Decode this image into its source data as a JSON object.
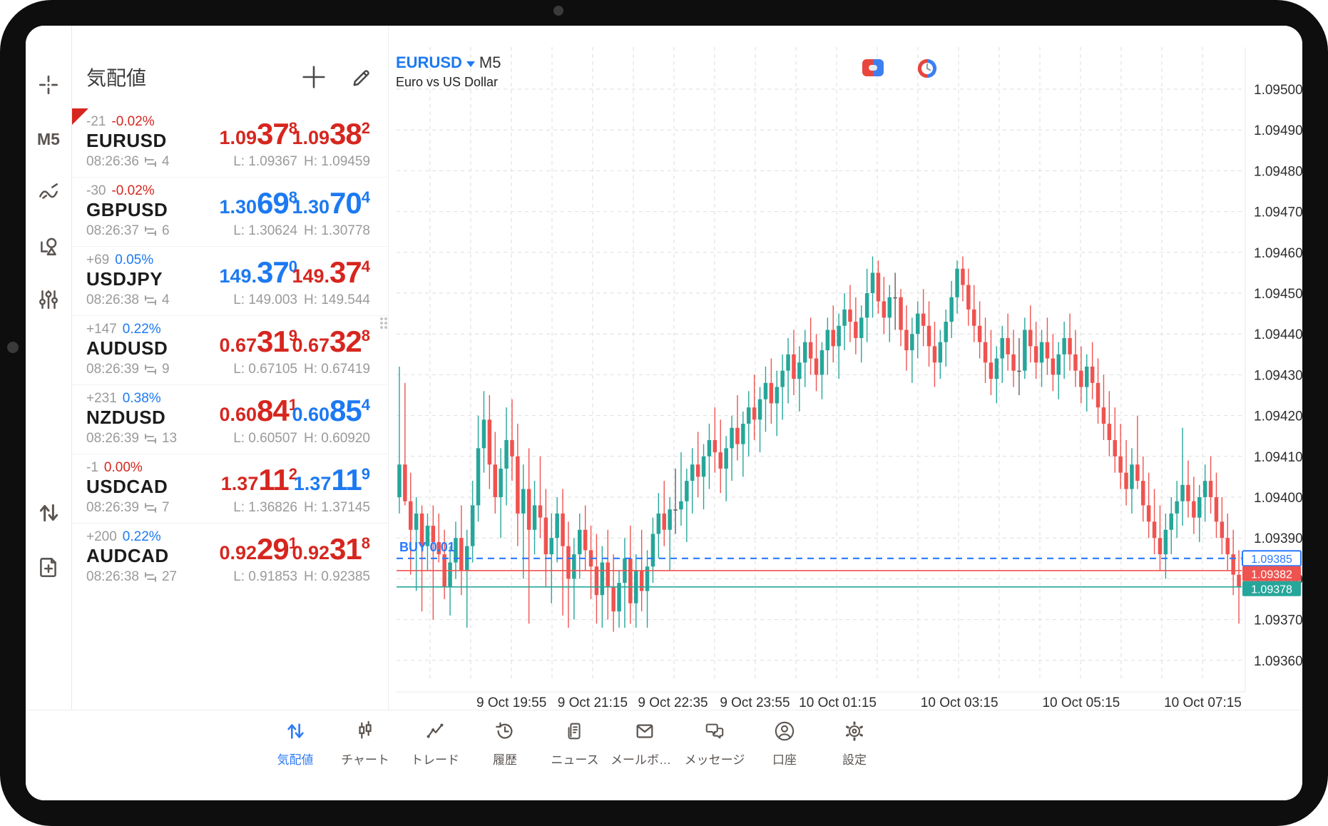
{
  "sidebar": {
    "timeframe": "M5",
    "tools": [
      "crosshair",
      "timeframe",
      "indicators",
      "objects",
      "chart-settings",
      "quick-trade",
      "new-order"
    ]
  },
  "quotes": {
    "title": "気配値",
    "items": [
      {
        "symbol": "EURUSD",
        "change": "-21",
        "change_pct": "-0.02%",
        "pct_dir": "down",
        "selected": true,
        "time": "08:26:36",
        "spread": "4",
        "bid": {
          "pre": "1.09",
          "big": "37",
          "sup": "8",
          "dir": "down"
        },
        "ask": {
          "pre": "1.09",
          "big": "38",
          "sup": "2",
          "dir": "down"
        },
        "low": "L: 1.09367",
        "high": "H: 1.09459"
      },
      {
        "symbol": "GBPUSD",
        "change": "-30",
        "change_pct": "-0.02%",
        "pct_dir": "down",
        "selected": false,
        "time": "08:26:37",
        "spread": "6",
        "bid": {
          "pre": "1.30",
          "big": "69",
          "sup": "8",
          "dir": "up"
        },
        "ask": {
          "pre": "1.30",
          "big": "70",
          "sup": "4",
          "dir": "up"
        },
        "low": "L: 1.30624",
        "high": "H: 1.30778"
      },
      {
        "symbol": "USDJPY",
        "change": "+69",
        "change_pct": "0.05%",
        "pct_dir": "up",
        "selected": false,
        "time": "08:26:38",
        "spread": "4",
        "bid": {
          "pre": "149.",
          "big": "37",
          "sup": "0",
          "dir": "up"
        },
        "ask": {
          "pre": "149.",
          "big": "37",
          "sup": "4",
          "dir": "down"
        },
        "low": "L: 149.003",
        "high": "H: 149.544"
      },
      {
        "symbol": "AUDUSD",
        "change": "+147",
        "change_pct": "0.22%",
        "pct_dir": "up",
        "selected": false,
        "time": "08:26:39",
        "spread": "9",
        "bid": {
          "pre": "0.67",
          "big": "31",
          "sup": "9",
          "dir": "down"
        },
        "ask": {
          "pre": "0.67",
          "big": "32",
          "sup": "8",
          "dir": "down"
        },
        "low": "L: 0.67105",
        "high": "H: 0.67419"
      },
      {
        "symbol": "NZDUSD",
        "change": "+231",
        "change_pct": "0.38%",
        "pct_dir": "up",
        "selected": false,
        "time": "08:26:39",
        "spread": "13",
        "bid": {
          "pre": "0.60",
          "big": "84",
          "sup": "1",
          "dir": "down"
        },
        "ask": {
          "pre": "0.60",
          "big": "85",
          "sup": "4",
          "dir": "up"
        },
        "low": "L: 0.60507",
        "high": "H: 0.60920"
      },
      {
        "symbol": "USDCAD",
        "change": "-1",
        "change_pct": "0.00%",
        "pct_dir": "down",
        "selected": false,
        "time": "08:26:39",
        "spread": "7",
        "bid": {
          "pre": "1.37",
          "big": "11",
          "sup": "2",
          "dir": "down"
        },
        "ask": {
          "pre": "1.37",
          "big": "11",
          "sup": "9",
          "dir": "up"
        },
        "low": "L: 1.36826",
        "high": "H: 1.37145"
      },
      {
        "symbol": "AUDCAD",
        "change": "+200",
        "change_pct": "0.22%",
        "pct_dir": "up",
        "selected": false,
        "time": "08:26:38",
        "spread": "27",
        "bid": {
          "pre": "0.92",
          "big": "29",
          "sup": "1",
          "dir": "down"
        },
        "ask": {
          "pre": "0.92",
          "big": "31",
          "sup": "8",
          "dir": "down"
        },
        "low": "L: 0.91853",
        "high": "H: 0.92385"
      }
    ]
  },
  "chart": {
    "symbol": "EURUSD",
    "timeframe": "M5",
    "description": "Euro vs US Dollar",
    "position_label": "BUY 0.01"
  },
  "chart_data": {
    "type": "candlestick",
    "title": "EURUSD M5",
    "price_base": 1.09,
    "unit": 1e-05,
    "ylim": [
      1.09355,
      1.0951
    ],
    "grid": true,
    "y_ticks": [
      "1.09500",
      "1.09490",
      "1.09480",
      "1.09470",
      "1.09460",
      "1.09450",
      "1.09440",
      "1.09430",
      "1.09420",
      "1.09410",
      "1.09400",
      "1.09390",
      "1.09380",
      "1.09370",
      "1.09360"
    ],
    "x_ticks": [
      {
        "label": "9 Oct 19:55",
        "pos": 0.136
      },
      {
        "label": "9 Oct 21:15",
        "pos": 0.232
      },
      {
        "label": "9 Oct 22:35",
        "pos": 0.327
      },
      {
        "label": "9 Oct 23:55",
        "pos": 0.424
      },
      {
        "label": "10 Oct 01:15",
        "pos": 0.522
      },
      {
        "label": "10 Oct 03:15",
        "pos": 0.666
      },
      {
        "label": "10 Oct 05:15",
        "pos": 0.81
      },
      {
        "label": "10 Oct 07:15",
        "pos": 0.954
      }
    ],
    "lines": {
      "position": {
        "price_units": 385,
        "tag": "1.09385",
        "label": "BUY 0.01",
        "style": "dashed",
        "color": "#2979ff"
      },
      "ask": {
        "price_units": 382,
        "tag": "1.09382",
        "style": "solid",
        "color": "#ef5350"
      },
      "bid": {
        "price_units": 378,
        "tag": "1.09378",
        "style": "solid",
        "color": "#26a69a"
      }
    },
    "colors": {
      "bull": "#26a69a",
      "bear": "#ef5350",
      "doji": "#616161",
      "grid": "#dedede",
      "axis_text": "#2e2e2e"
    },
    "candles": [
      [
        400,
        432,
        396,
        408
      ],
      [
        408,
        428,
        398,
        399
      ],
      [
        399,
        406,
        381,
        392
      ],
      [
        392,
        400,
        377,
        396
      ],
      [
        396,
        398,
        372,
        388
      ],
      [
        388,
        396,
        382,
        393
      ],
      [
        393,
        398,
        370,
        389
      ],
      [
        389,
        396,
        384,
        386
      ],
      [
        386,
        392,
        375,
        378
      ],
      [
        378,
        388,
        371,
        384
      ],
      [
        384,
        394,
        380,
        390
      ],
      [
        390,
        398,
        376,
        382
      ],
      [
        382,
        392,
        368,
        388
      ],
      [
        388,
        404,
        384,
        398
      ],
      [
        398,
        420,
        394,
        412
      ],
      [
        412,
        426,
        406,
        419
      ],
      [
        419,
        425,
        402,
        408
      ],
      [
        408,
        416,
        396,
        400
      ],
      [
        400,
        412,
        390,
        407
      ],
      [
        407,
        422,
        398,
        414
      ],
      [
        414,
        424,
        404,
        410
      ],
      [
        410,
        418,
        388,
        396
      ],
      [
        396,
        408,
        380,
        402
      ],
      [
        402,
        412,
        369,
        392
      ],
      [
        392,
        404,
        386,
        398
      ],
      [
        398,
        410,
        390,
        395
      ],
      [
        395,
        402,
        378,
        386
      ],
      [
        386,
        396,
        374,
        390
      ],
      [
        390,
        400,
        384,
        396
      ],
      [
        396,
        402,
        371,
        388
      ],
      [
        388,
        394,
        368,
        380
      ],
      [
        380,
        390,
        370,
        386
      ],
      [
        386,
        396,
        380,
        392
      ],
      [
        392,
        398,
        382,
        387
      ],
      [
        387,
        393,
        375,
        383
      ],
      [
        383,
        391,
        369,
        376
      ],
      [
        376,
        388,
        368,
        384
      ],
      [
        384,
        392,
        370,
        378
      ],
      [
        378,
        386,
        367,
        372
      ],
      [
        372,
        382,
        368,
        379
      ],
      [
        379,
        390,
        368,
        385
      ],
      [
        385,
        393,
        369,
        374
      ],
      [
        374,
        386,
        368,
        382
      ],
      [
        382,
        392,
        372,
        377
      ],
      [
        377,
        387,
        368,
        383
      ],
      [
        383,
        395,
        379,
        391
      ],
      [
        391,
        401,
        385,
        396
      ],
      [
        396,
        404,
        388,
        392
      ],
      [
        392,
        400,
        382,
        397
      ],
      [
        397,
        407,
        391,
        397
      ],
      [
        397,
        411,
        393,
        399
      ],
      [
        399,
        407,
        389,
        404
      ],
      [
        404,
        412,
        396,
        408
      ],
      [
        408,
        416,
        400,
        405
      ],
      [
        405,
        413,
        397,
        410
      ],
      [
        410,
        418,
        402,
        414
      ],
      [
        414,
        422,
        406,
        411
      ],
      [
        411,
        419,
        401,
        407
      ],
      [
        407,
        415,
        399,
        412
      ],
      [
        412,
        420,
        404,
        417
      ],
      [
        417,
        425,
        409,
        413
      ],
      [
        413,
        421,
        405,
        418
      ],
      [
        418,
        426,
        410,
        422
      ],
      [
        422,
        430,
        414,
        419
      ],
      [
        419,
        427,
        411,
        424
      ],
      [
        424,
        432,
        416,
        428
      ],
      [
        428,
        434,
        418,
        423
      ],
      [
        423,
        431,
        415,
        427
      ],
      [
        427,
        435,
        419,
        431
      ],
      [
        431,
        439,
        423,
        435
      ],
      [
        435,
        441,
        425,
        429
      ],
      [
        429,
        437,
        421,
        433
      ],
      [
        433,
        441,
        427,
        438
      ],
      [
        438,
        444,
        430,
        434
      ],
      [
        434,
        440,
        426,
        430
      ],
      [
        430,
        438,
        424,
        436
      ],
      [
        436,
        444,
        430,
        441
      ],
      [
        441,
        447,
        433,
        437
      ],
      [
        437,
        445,
        429,
        442
      ],
      [
        442,
        450,
        436,
        446
      ],
      [
        446,
        452,
        438,
        443
      ],
      [
        443,
        449,
        435,
        439
      ],
      [
        439,
        447,
        433,
        444
      ],
      [
        444,
        456,
        438,
        450
      ],
      [
        450,
        459,
        444,
        455
      ],
      [
        455,
        458,
        445,
        448
      ],
      [
        448,
        454,
        440,
        444
      ],
      [
        444,
        452,
        438,
        449
      ],
      [
        449,
        455,
        441,
        449
      ],
      [
        449,
        451,
        437,
        441
      ],
      [
        441,
        447,
        431,
        436
      ],
      [
        436,
        444,
        428,
        440
      ],
      [
        440,
        448,
        434,
        445
      ],
      [
        445,
        451,
        437,
        442
      ],
      [
        442,
        448,
        432,
        437
      ],
      [
        437,
        443,
        427,
        433
      ],
      [
        433,
        441,
        429,
        438
      ],
      [
        438,
        446,
        432,
        443
      ],
      [
        443,
        453,
        439,
        449
      ],
      [
        449,
        458,
        445,
        456
      ],
      [
        456,
        459,
        448,
        452
      ],
      [
        452,
        456,
        442,
        446
      ],
      [
        446,
        452,
        438,
        442
      ],
      [
        442,
        448,
        434,
        438
      ],
      [
        438,
        444,
        428,
        433
      ],
      [
        433,
        441,
        425,
        429
      ],
      [
        429,
        437,
        423,
        434
      ],
      [
        434,
        442,
        428,
        439
      ],
      [
        439,
        445,
        431,
        435
      ],
      [
        435,
        441,
        427,
        431
      ],
      [
        431,
        439,
        425,
        431
      ],
      [
        431,
        444,
        429,
        441
      ],
      [
        441,
        447,
        433,
        437
      ],
      [
        437,
        443,
        429,
        433
      ],
      [
        433,
        441,
        427,
        438
      ],
      [
        438,
        444,
        430,
        434
      ],
      [
        434,
        440,
        426,
        430
      ],
      [
        430,
        438,
        424,
        435
      ],
      [
        435,
        443,
        429,
        439
      ],
      [
        439,
        445,
        431,
        435
      ],
      [
        435,
        441,
        427,
        431
      ],
      [
        431,
        437,
        423,
        427
      ],
      [
        427,
        435,
        421,
        432
      ],
      [
        432,
        438,
        424,
        428
      ],
      [
        428,
        434,
        418,
        422
      ],
      [
        422,
        430,
        414,
        418
      ],
      [
        418,
        426,
        410,
        414
      ],
      [
        414,
        422,
        406,
        410
      ],
      [
        410,
        418,
        402,
        406
      ],
      [
        406,
        414,
        398,
        402
      ],
      [
        402,
        412,
        396,
        408
      ],
      [
        408,
        420,
        402,
        404
      ],
      [
        404,
        410,
        394,
        398
      ],
      [
        398,
        406,
        390,
        394
      ],
      [
        394,
        402,
        386,
        390
      ],
      [
        390,
        398,
        382,
        386
      ],
      [
        386,
        396,
        380,
        392
      ],
      [
        392,
        400,
        386,
        396
      ],
      [
        396,
        404,
        390,
        399
      ],
      [
        399,
        417,
        393,
        403
      ],
      [
        403,
        409,
        395,
        399
      ],
      [
        399,
        405,
        391,
        395
      ],
      [
        395,
        403,
        389,
        400
      ],
      [
        400,
        408,
        394,
        404
      ],
      [
        404,
        410,
        396,
        400
      ],
      [
        400,
        406,
        390,
        394
      ],
      [
        394,
        400,
        386,
        390
      ],
      [
        390,
        396,
        382,
        386
      ],
      [
        386,
        392,
        376,
        381
      ],
      [
        381,
        387,
        369,
        378
      ]
    ]
  },
  "bottom_nav": {
    "items": [
      {
        "id": "quotes",
        "label": "気配値",
        "active": true
      },
      {
        "id": "charts",
        "label": "チャート",
        "active": false
      },
      {
        "id": "trade",
        "label": "トレード",
        "active": false
      },
      {
        "id": "history",
        "label": "履歴",
        "active": false
      },
      {
        "id": "news",
        "label": "ニュース",
        "active": false
      },
      {
        "id": "mailbox",
        "label": "メールボッ…",
        "active": false
      },
      {
        "id": "messages",
        "label": "メッセージ",
        "active": false
      },
      {
        "id": "accounts",
        "label": "口座",
        "active": false
      },
      {
        "id": "settings",
        "label": "設定",
        "active": false
      }
    ]
  }
}
